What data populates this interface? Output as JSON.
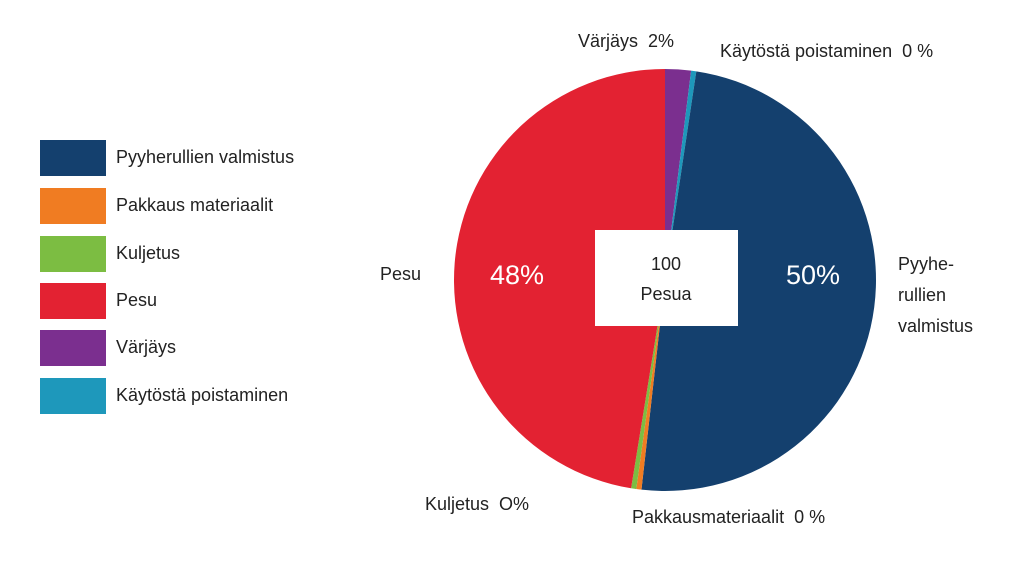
{
  "chart_data": {
    "type": "pie",
    "series": [
      {
        "name": "Pyyherullien  valmistus",
        "color": "#14406e",
        "value": 50,
        "value_label": "50%",
        "label_lines": [
          "Pyyhe-",
          "rullien",
          "valmistus"
        ]
      },
      {
        "name": "Pakkaus materiaalit",
        "color": "#f07c22",
        "value": 0.4,
        "value_label": "0 %",
        "label_lines": [
          "Pakkausmateriaalit"
        ]
      },
      {
        "name": "Kuljetus",
        "color": "#7cbd42",
        "value": 0.4,
        "value_label": "O%",
        "label_lines": [
          "Kuljetus"
        ]
      },
      {
        "name": "Pesu",
        "color": "#e32232",
        "value": 48,
        "value_label": "48%",
        "label_lines": [
          "Pesu"
        ]
      },
      {
        "name": "Värjäys",
        "color": "#7b2f8f",
        "value": 2,
        "value_label": "2%",
        "label_lines": [
          "Värjäys"
        ]
      },
      {
        "name": "Käytöstä poistaminen",
        "color": "#1e98bb",
        "value": 0.4,
        "value_label": "0 %",
        "label_lines": [
          "Käytöstä poistaminen"
        ]
      }
    ],
    "center_label": [
      "100",
      "Pesua"
    ]
  }
}
